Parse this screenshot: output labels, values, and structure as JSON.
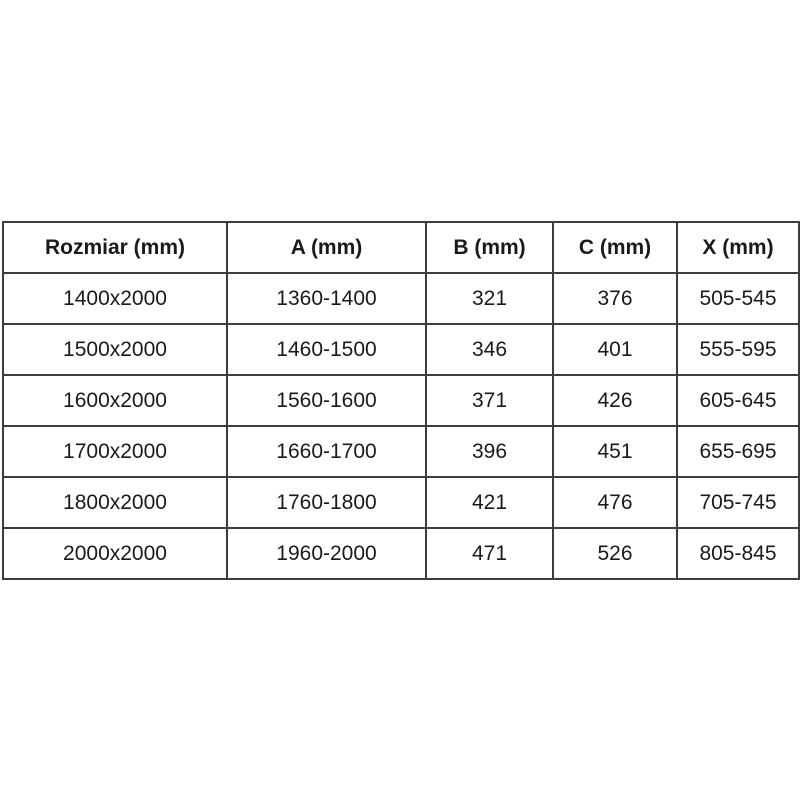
{
  "table": {
    "columns": [
      "Rozmiar (mm)",
      "A (mm)",
      "B (mm)",
      "C (mm)",
      "X (mm)"
    ],
    "rows": [
      [
        "1400x2000",
        "1360-1400",
        "321",
        "376",
        "505-545"
      ],
      [
        "1500x2000",
        "1460-1500",
        "346",
        "401",
        "555-595"
      ],
      [
        "1600x2000",
        "1560-1600",
        "371",
        "426",
        "605-645"
      ],
      [
        "1700x2000",
        "1660-1700",
        "396",
        "451",
        "655-695"
      ],
      [
        "1800x2000",
        "1760-1800",
        "421",
        "476",
        "705-745"
      ],
      [
        "2000x2000",
        "1960-2000",
        "471",
        "526",
        "805-845"
      ]
    ]
  },
  "colors": {
    "border": "#3d3d3d",
    "text": "#1a1a1a",
    "background": "#ffffff"
  }
}
